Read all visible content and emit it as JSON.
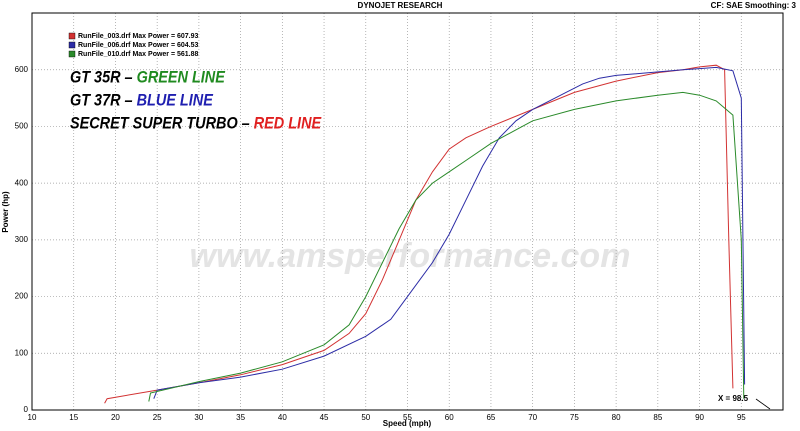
{
  "chart_data": {
    "type": "line",
    "title": "DYNOJET RESEARCH",
    "subtitle": "CF: SAE  Smoothing: 3",
    "x_label": "Speed (mph)",
    "y_label": "Power (hp)",
    "watermark": "www.amsperformance.com",
    "xlim": [
      10,
      100
    ],
    "ylim": [
      0,
      700
    ],
    "xticks": [
      10,
      15,
      20,
      25,
      30,
      35,
      40,
      45,
      50,
      55,
      60,
      65,
      70,
      75,
      80,
      85,
      90,
      95
    ],
    "yticks": [
      0,
      100,
      200,
      300,
      400,
      500,
      600
    ],
    "grid": true,
    "series": [
      {
        "name": "RunFile_003.drf Max Power = 607.93",
        "color": "#d23232",
        "x": [
          18.7,
          19,
          25,
          30,
          35,
          40,
          45,
          48,
          50,
          52,
          54,
          56,
          58,
          60,
          62,
          65,
          70,
          75,
          80,
          85,
          88,
          90,
          92,
          93,
          93.5,
          94
        ],
        "values": [
          12,
          20,
          35,
          48,
          62,
          80,
          105,
          135,
          170,
          230,
          300,
          370,
          420,
          460,
          480,
          500,
          530,
          560,
          580,
          595,
          600,
          605,
          608,
          600,
          300,
          38
        ]
      },
      {
        "name": "RunFile_006.drf Max Power = 604.53",
        "color": "#2c2ca6",
        "x": [
          24.6,
          25,
          30,
          35,
          40,
          45,
          50,
          53,
          55,
          58,
          60,
          62,
          64,
          66,
          68,
          70,
          72,
          74,
          76,
          78,
          80,
          84,
          88,
          90,
          92,
          94,
          95,
          95.4
        ],
        "values": [
          20,
          35,
          48,
          58,
          72,
          95,
          130,
          160,
          200,
          260,
          310,
          370,
          430,
          480,
          510,
          530,
          545,
          560,
          575,
          585,
          590,
          595,
          600,
          602,
          604,
          598,
          550,
          45
        ]
      },
      {
        "name": "RunFile_010.drf Max Power = 561.88",
        "color": "#2a8a2a",
        "x": [
          24,
          24.2,
          30,
          35,
          40,
          45,
          48,
          50,
          52,
          54,
          56,
          58,
          60,
          62,
          65,
          70,
          75,
          80,
          85,
          88,
          90,
          92,
          94,
          95,
          95.3
        ],
        "values": [
          15,
          30,
          50,
          65,
          85,
          115,
          150,
          200,
          260,
          320,
          370,
          400,
          420,
          440,
          470,
          510,
          530,
          545,
          555,
          560,
          555,
          545,
          520,
          300,
          20
        ]
      }
    ],
    "annotations": [
      {
        "prefix": "GT 35R – ",
        "highlight": "GREEN LINE",
        "color": "#1f8a1f"
      },
      {
        "prefix": "GT 37R – ",
        "highlight": "BLUE LINE",
        "color": "#1f1fb0"
      },
      {
        "prefix": "SECRET SUPER TURBO – ",
        "highlight": "RED LINE",
        "color": "#e02020"
      }
    ],
    "cursor_label": "X = 98.5"
  }
}
